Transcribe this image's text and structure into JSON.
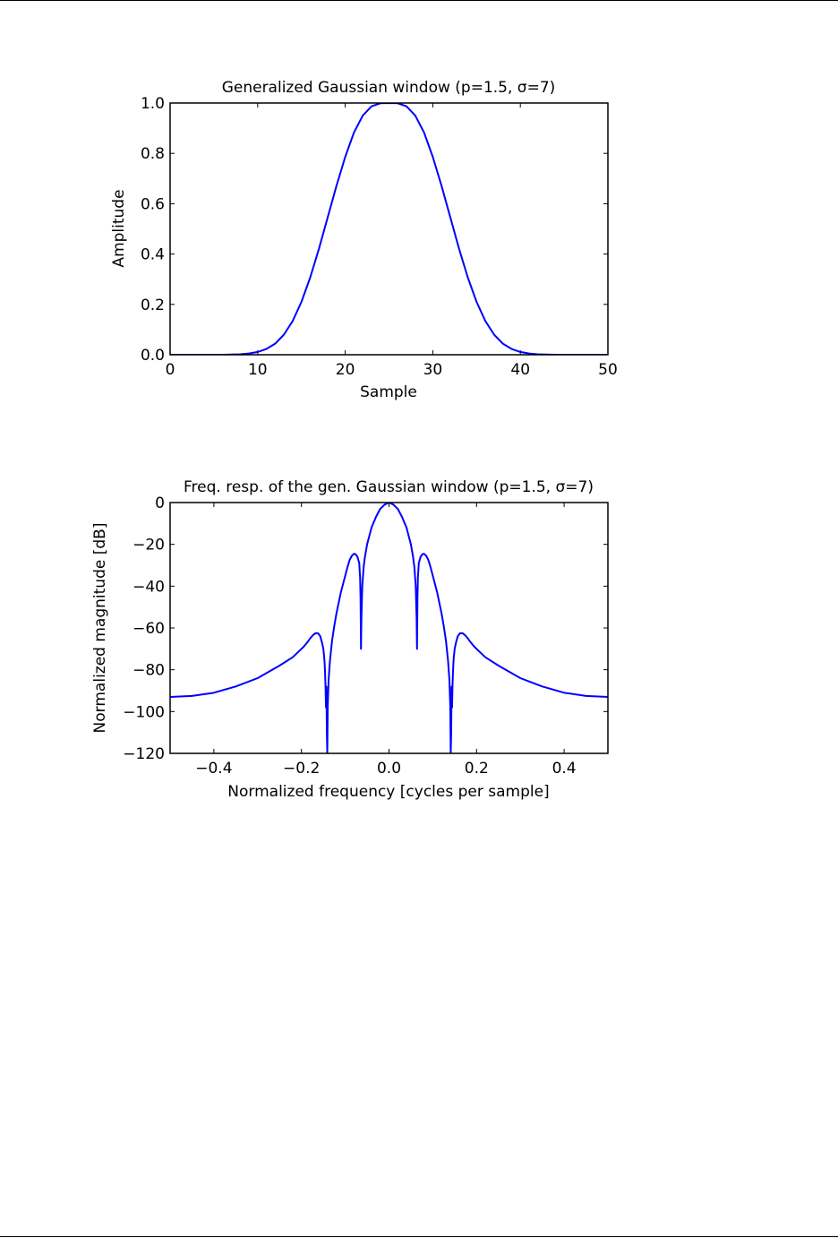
{
  "chart_data": [
    {
      "type": "line",
      "title": "Generalized Gaussian window (p=1.5, σ=7)",
      "xlabel": "Sample",
      "ylabel": "Amplitude",
      "xlim": [
        0,
        50
      ],
      "ylim": [
        0,
        1
      ],
      "xticks": [
        "0",
        "10",
        "20",
        "30",
        "40",
        "50"
      ],
      "yticks": [
        "0.0",
        "0.2",
        "0.4",
        "0.6",
        "0.8",
        "1.0"
      ],
      "grid": false,
      "line_color": "#0000ff",
      "series": [
        {
          "x": [
            0,
            1,
            2,
            3,
            4,
            5,
            6,
            7,
            8,
            9,
            10,
            11,
            12,
            13,
            14,
            15,
            16,
            17,
            18,
            19,
            20,
            21,
            22,
            23,
            24,
            25,
            26,
            27,
            28,
            29,
            30,
            31,
            32,
            33,
            34,
            35,
            36,
            37,
            38,
            39,
            40,
            41,
            42,
            43,
            44,
            45,
            46,
            47,
            48,
            49,
            50
          ],
          "values": [
            0,
            0,
            0,
            0,
            0,
            0,
            0,
            0.001,
            0.002,
            0.005,
            0.011,
            0.023,
            0.044,
            0.08,
            0.134,
            0.21,
            0.307,
            0.421,
            0.546,
            0.671,
            0.786,
            0.883,
            0.95,
            0.987,
            0.999,
            1.0,
            0.999,
            0.987,
            0.95,
            0.883,
            0.786,
            0.671,
            0.546,
            0.421,
            0.307,
            0.21,
            0.134,
            0.08,
            0.044,
            0.023,
            0.011,
            0.005,
            0.002,
            0.001,
            0,
            0,
            0,
            0,
            0,
            0,
            0
          ]
        }
      ]
    },
    {
      "type": "line",
      "title": "Freq. resp. of the gen. Gaussian window (p=1.5, σ=7)",
      "xlabel": "Normalized frequency [cycles per sample]",
      "ylabel": "Normalized magnitude [dB]",
      "xlim": [
        -0.5,
        0.5
      ],
      "ylim": [
        -120,
        0
      ],
      "xticks": [
        "−0.4",
        "−0.2",
        "0.0",
        "0.2",
        "0.4"
      ],
      "yticks": [
        "−120",
        "−100",
        "−80",
        "−60",
        "−40",
        "−20",
        "0"
      ],
      "grid": false,
      "line_color": "#0000ff",
      "series": [
        {
          "x": [
            0,
            0.01,
            0.02,
            0.03,
            0.04,
            0.045,
            0.05,
            0.055,
            0.058,
            0.061,
            0.063,
            0.064,
            0.065,
            0.066,
            0.068,
            0.072,
            0.076,
            0.08,
            0.085,
            0.09,
            0.095,
            0.1,
            0.105,
            0.11,
            0.115,
            0.12,
            0.125,
            0.13,
            0.135,
            0.138,
            0.14,
            0.141,
            0.142,
            0.143,
            0.144,
            0.145,
            0.146,
            0.147,
            0.148,
            0.15,
            0.153,
            0.157,
            0.162,
            0.168,
            0.174,
            0.18,
            0.187,
            0.195,
            0.205,
            0.22,
            0.25,
            0.3,
            0.35,
            0.4,
            0.45,
            0.5
          ],
          "values": [
            0,
            -1,
            -3,
            -7,
            -12,
            -16,
            -20,
            -26,
            -31,
            -40,
            -55,
            -70,
            -46,
            -36,
            -29,
            -26,
            -24.8,
            -24.5,
            -25.5,
            -27.5,
            -31,
            -35,
            -39,
            -43,
            -48,
            -53,
            -59,
            -66,
            -76,
            -85,
            -98,
            -120,
            -110,
            -88,
            -98,
            -88,
            -82,
            -77,
            -74,
            -70,
            -67,
            -64,
            -62.5,
            -62.5,
            -63.5,
            -65,
            -67,
            -69,
            -71,
            -74,
            -78,
            -84,
            -88,
            -91,
            -92.5,
            -93
          ]
        }
      ]
    }
  ]
}
